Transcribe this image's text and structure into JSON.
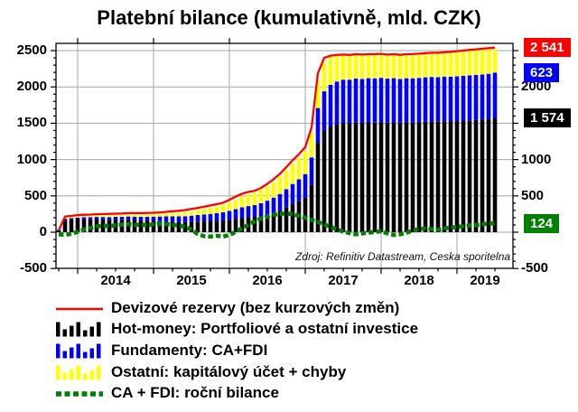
{
  "title": "Platební bilance (kumulativně, mld. CZK)",
  "source_note": "Zdroj: Refinitiv Datastream, Ceska sporitelna",
  "colors": {
    "reserves_line": "#ff0000",
    "hot_money_bars": "#000000",
    "fundamenty_bars": "#0000ff",
    "ostatni_bars": "#ffff00",
    "ca_fdi_line": "#008000",
    "grid": "#a6a6a6",
    "axis": "#000000",
    "background": "#ffffff"
  },
  "legend": {
    "items": [
      {
        "label": "Devizové rezervy (bez kurzových změn)",
        "color": "#ff0000",
        "swatch": "line"
      },
      {
        "label": "Hot-money: Portfoliové a ostatní investice",
        "color": "#000000",
        "swatch": "bars"
      },
      {
        "label": "Fundamenty: CA+FDI",
        "color": "#0000ff",
        "swatch": "bars"
      },
      {
        "label": "Ostatní: kapitálový účet + chyby",
        "color": "#ffff00",
        "swatch": "bars"
      },
      {
        "label": "CA + FDI: roční bilance",
        "color": "#008000",
        "swatch": "dashed-line"
      }
    ]
  },
  "axes": {
    "y_left_ticks": [
      {
        "label": "2500",
        "value": 2500
      },
      {
        "label": "2000",
        "value": 2000
      },
      {
        "label": "1500",
        "value": 1500
      },
      {
        "label": "1000",
        "value": 1000
      },
      {
        "label": "500",
        "value": 500
      },
      {
        "label": "0",
        "value": 0
      },
      {
        "label": "-500",
        "value": -500
      }
    ],
    "y_right_ticks": [
      {
        "label": "2000",
        "value": 2000
      },
      {
        "label": "1000",
        "value": 1000
      },
      {
        "label": "500",
        "value": 500
      },
      {
        "label": "-500",
        "value": -500
      }
    ],
    "x_year_labels": [
      "2014",
      "2015",
      "2016",
      "2017",
      "2018",
      "2019"
    ],
    "y_range": [
      -500,
      2600
    ],
    "y_major_step": 500,
    "y_minor_step": 100
  },
  "value_boxes": [
    {
      "label": "2 541",
      "at": 2541,
      "color": "#ff0000",
      "series": "Devizové rezervy (bez kurzových změn)"
    },
    {
      "label": "623",
      "at": 2197,
      "color": "#0000ff",
      "series": "Fundamenty: CA+FDI"
    },
    {
      "label": "1 574",
      "at": 1574,
      "color": "#000000",
      "series": "Hot-money: Portfoliové a ostatní investice"
    },
    {
      "label": "124",
      "at": 124,
      "color": "#008000",
      "series": "CA + FDI: roční bilance"
    }
  ],
  "chart_data": {
    "type": "combo: monthly stacked bars + lines",
    "unit": "mld. CZK, kumulativně",
    "ylim": [
      -500,
      2600
    ],
    "grid": true,
    "legend_position": "bottom",
    "x_monthly": [
      "2013-10",
      "2013-11",
      "2013-12",
      "2014-01",
      "2014-02",
      "2014-03",
      "2014-04",
      "2014-05",
      "2014-06",
      "2014-07",
      "2014-08",
      "2014-09",
      "2014-10",
      "2014-11",
      "2014-12",
      "2015-01",
      "2015-02",
      "2015-03",
      "2015-04",
      "2015-05",
      "2015-06",
      "2015-07",
      "2015-08",
      "2015-09",
      "2015-10",
      "2015-11",
      "2015-12",
      "2016-01",
      "2016-02",
      "2016-03",
      "2016-04",
      "2016-05",
      "2016-06",
      "2016-07",
      "2016-08",
      "2016-09",
      "2016-10",
      "2016-11",
      "2016-12",
      "2017-01",
      "2017-02",
      "2017-03",
      "2017-04",
      "2017-05",
      "2017-06",
      "2017-07",
      "2017-08",
      "2017-09",
      "2017-10",
      "2017-11",
      "2017-12",
      "2018-01",
      "2018-02",
      "2018-03",
      "2018-04",
      "2018-05",
      "2018-06",
      "2018-07",
      "2018-08",
      "2018-09",
      "2018-10",
      "2018-11",
      "2018-12",
      "2019-01",
      "2019-02",
      "2019-03",
      "2019-04",
      "2019-05",
      "2019-06",
      "2019-07"
    ],
    "series": [
      {
        "name": "Hot-money: Portfoliové a ostatní investice",
        "type": "bar",
        "stack": true,
        "color": "#000000",
        "values": [
          20,
          170,
          175,
          180,
          182,
          178,
          180,
          176,
          172,
          174,
          170,
          172,
          168,
          164,
          160,
          156,
          152,
          148,
          144,
          140,
          138,
          142,
          146,
          150,
          154,
          158,
          162,
          172,
          184,
          196,
          204,
          210,
          222,
          242,
          266,
          296,
          340,
          390,
          432,
          478,
          650,
          1230,
          1400,
          1460,
          1490,
          1505,
          1500,
          1510,
          1505,
          1512,
          1508,
          1515,
          1508,
          1514,
          1508,
          1515,
          1510,
          1516,
          1520,
          1525,
          1520,
          1526,
          1524,
          1530,
          1536,
          1540,
          1546,
          1552,
          1560,
          1574
        ]
      },
      {
        "name": "Fundamenty: CA+FDI",
        "type": "bar",
        "stack": true,
        "color": "#0000ff",
        "values": [
          10,
          15,
          20,
          22,
          25,
          28,
          30,
          33,
          36,
          38,
          41,
          44,
          46,
          48,
          52,
          58,
          64,
          70,
          74,
          78,
          82,
          86,
          90,
          94,
          98,
          104,
          112,
          122,
          134,
          146,
          156,
          164,
          176,
          192,
          210,
          230,
          252,
          274,
          296,
          322,
          380,
          480,
          540,
          570,
          585,
          595,
          600,
          605,
          605,
          608,
          610,
          610,
          606,
          606,
          602,
          604,
          608,
          608,
          612,
          612,
          614,
          616,
          618,
          616,
          618,
          620,
          620,
          618,
          621,
          623
        ]
      },
      {
        "name": "Ostatní: kapitálový účet + chyby",
        "type": "bar",
        "stack": true,
        "color": "#ffff00",
        "values": [
          5,
          15,
          15,
          16,
          17,
          18,
          20,
          21,
          22,
          24,
          25,
          26,
          28,
          30,
          32,
          35,
          38,
          42,
          46,
          50,
          56,
          62,
          70,
          78,
          86,
          94,
          102,
          116,
          132,
          148,
          160,
          170,
          184,
          200,
          218,
          238,
          258,
          278,
          296,
          314,
          340,
          380,
          400,
          390,
          370,
          350,
          340,
          330,
          330,
          325,
          322,
          320,
          318,
          316,
          318,
          320,
          322,
          324,
          324,
          326,
          326,
          328,
          330,
          334,
          336,
          338,
          340,
          342,
          344,
          320
        ]
      },
      {
        "name": "Devizové rezervy (bez kurzových změn)",
        "type": "line",
        "color": "#ff0000",
        "values": [
          25,
          215,
          225,
          235,
          240,
          242,
          248,
          250,
          252,
          255,
          258,
          262,
          262,
          263,
          265,
          268,
          272,
          280,
          288,
          295,
          305,
          320,
          335,
          352,
          368,
          385,
          405,
          445,
          490,
          530,
          555,
          570,
          610,
          665,
          730,
          805,
          895,
          990,
          1075,
          1170,
          1440,
          2190,
          2400,
          2430,
          2440,
          2445,
          2440,
          2450,
          2445,
          2450,
          2450,
          2455,
          2445,
          2450,
          2442,
          2450,
          2452,
          2458,
          2465,
          2470,
          2470,
          2478,
          2482,
          2492,
          2500,
          2510,
          2518,
          2526,
          2534,
          2541
        ]
      },
      {
        "name": "CA + FDI: roční bilance",
        "type": "dashed-line",
        "color": "#008000",
        "values": [
          -30,
          -35,
          -25,
          5,
          35,
          60,
          80,
          90,
          85,
          95,
          105,
          112,
          100,
          105,
          95,
          110,
          118,
          112,
          102,
          92,
          75,
          35,
          -25,
          -55,
          -60,
          -50,
          -60,
          -40,
          5,
          55,
          105,
          150,
          185,
          215,
          240,
          252,
          258,
          248,
          228,
          198,
          168,
          140,
          108,
          75,
          40,
          8,
          -12,
          -28,
          -18,
          -8,
          2,
          12,
          -18,
          -38,
          -28,
          -8,
          22,
          42,
          52,
          42,
          32,
          52,
          62,
          72,
          82,
          92,
          100,
          110,
          118,
          124
        ]
      }
    ]
  }
}
